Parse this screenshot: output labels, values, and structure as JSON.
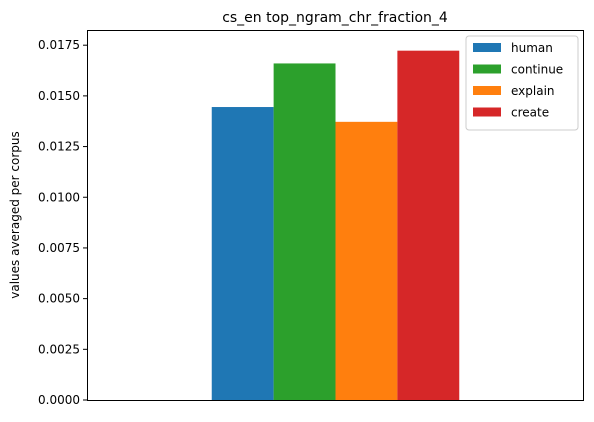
{
  "chart_data": {
    "type": "bar",
    "title": "cs_en top_ngram_chr_fraction_4",
    "xlabel": "",
    "ylabel": "values averaged per corpus",
    "ylim": [
      0,
      0.0182
    ],
    "yticks": [
      0.0,
      0.0025,
      0.005,
      0.0075,
      0.01,
      0.0125,
      0.015,
      0.0175
    ],
    "ytick_labels": [
      "0.0000",
      "0.0025",
      "0.0050",
      "0.0075",
      "0.0100",
      "0.0125",
      "0.0150",
      "0.0175"
    ],
    "categories": [
      ""
    ],
    "series": [
      {
        "name": "human",
        "values": [
          0.01445
        ],
        "color": "#1f77b4"
      },
      {
        "name": "continue",
        "values": [
          0.0166
        ],
        "color": "#2ca02c"
      },
      {
        "name": "explain",
        "values": [
          0.01372
        ],
        "color": "#ff7f0e"
      },
      {
        "name": "create",
        "values": [
          0.01723
        ],
        "color": "#d62728"
      }
    ],
    "grid": false,
    "legend_position": "top-right"
  }
}
